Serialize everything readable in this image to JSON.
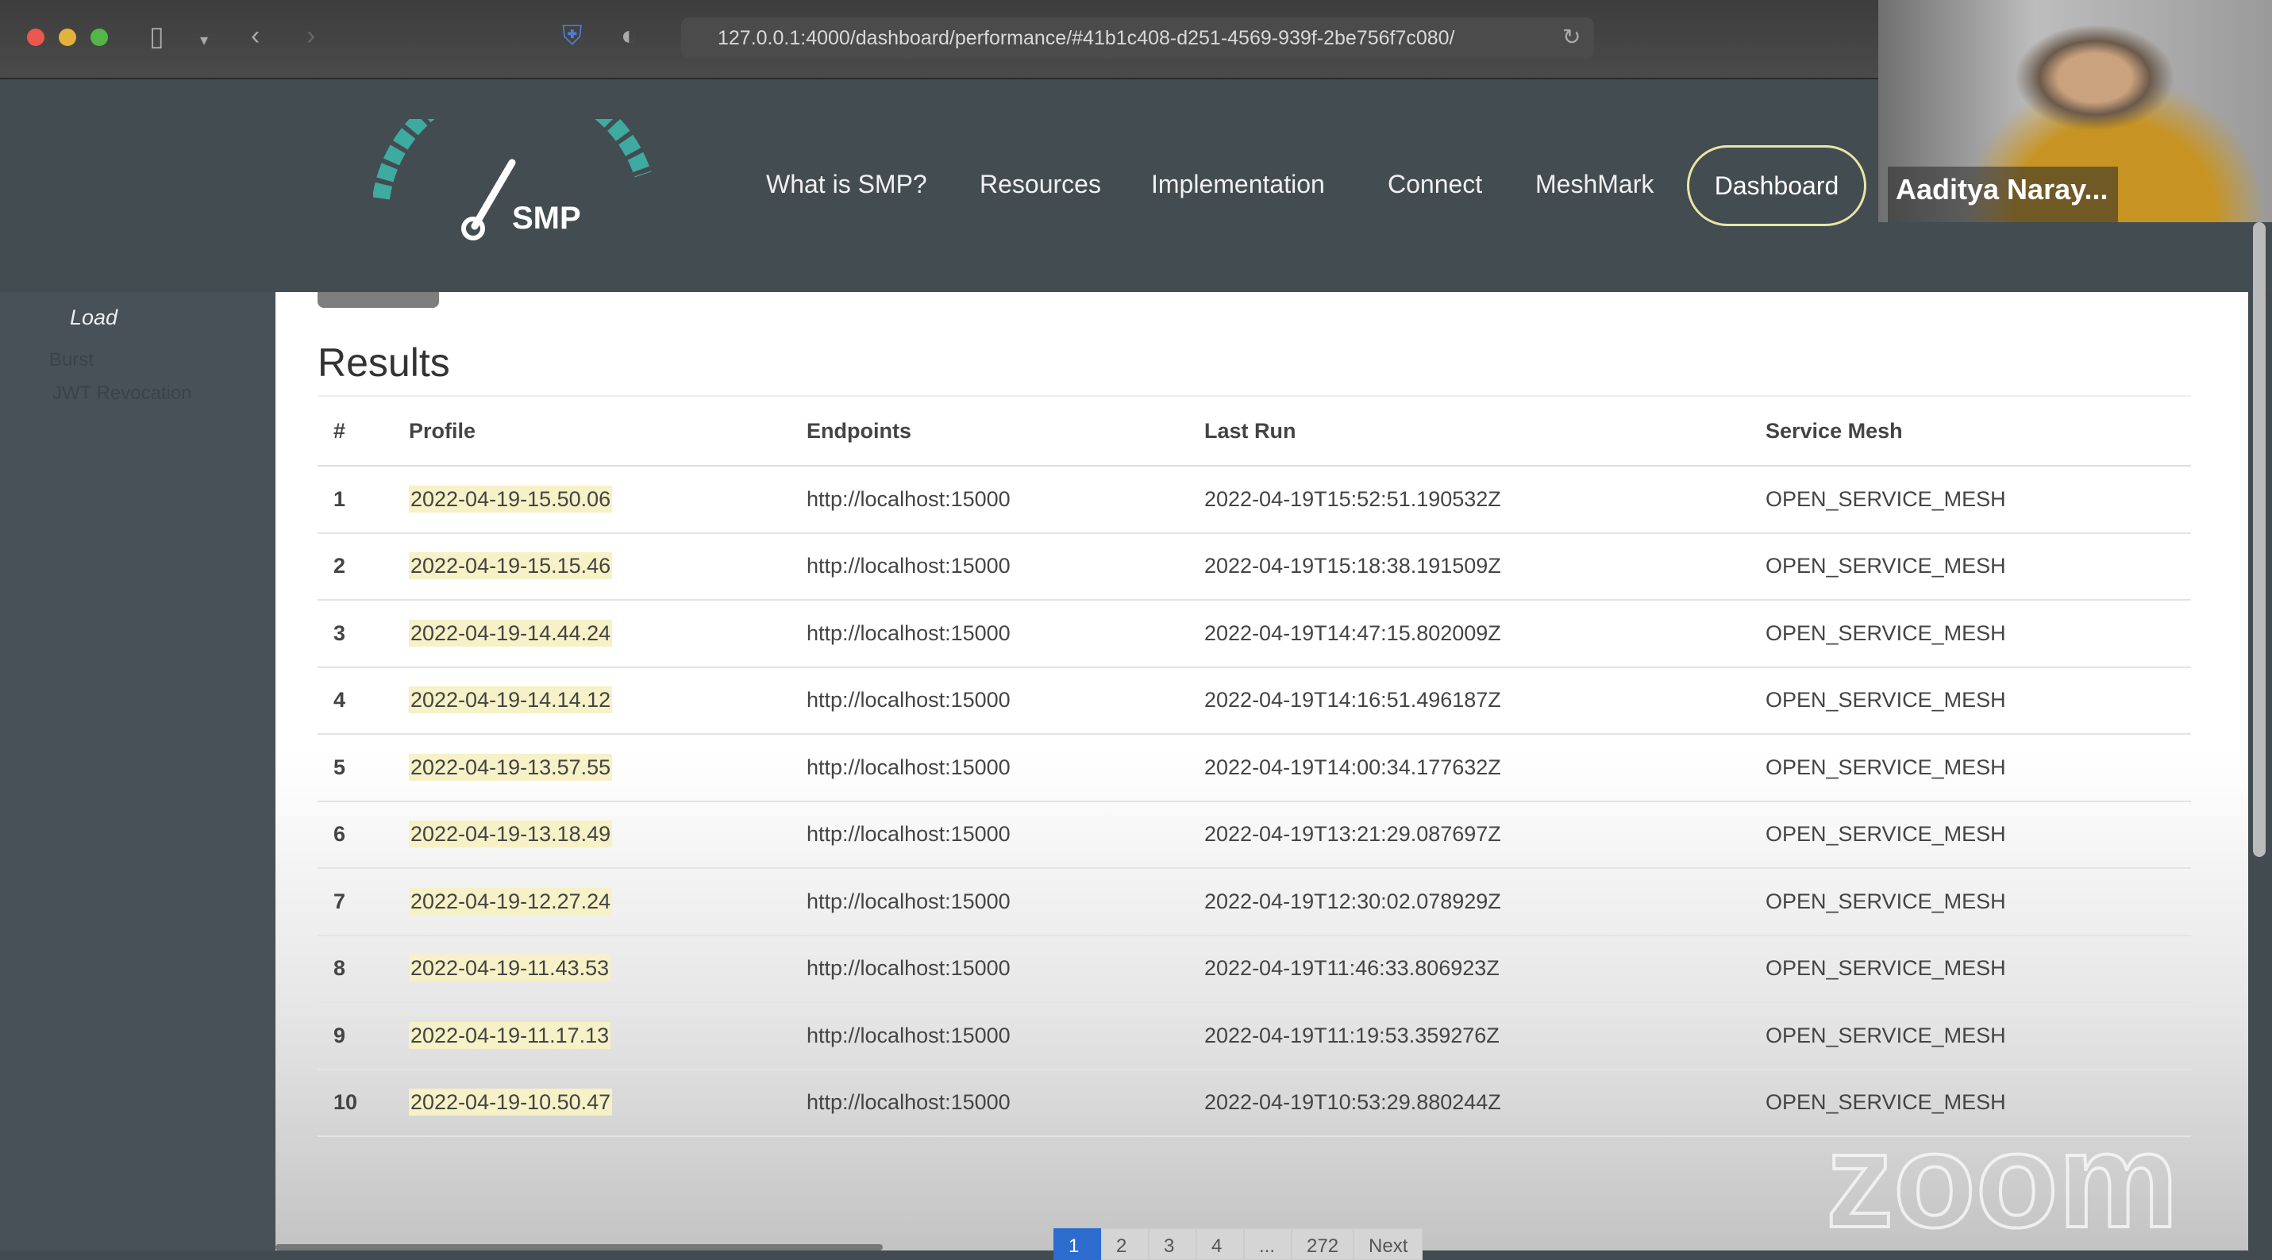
{
  "browser": {
    "url": "127.0.0.1:4000/dashboard/performance/#41b1c408-d251-4569-939f-2be756f7c080/"
  },
  "header": {
    "logo_text": "SMP",
    "nav": [
      "What is SMP?",
      "Resources",
      "Implementation",
      "Connect",
      "MeshMark"
    ],
    "dashboard_label": "Dashboard",
    "accent": "#3fb5a8"
  },
  "video": {
    "participant": "Aaditya Naray..."
  },
  "sidebar": {
    "items": [
      "Load",
      "Burst",
      "JWT Revocation"
    ]
  },
  "main": {
    "title": "Results",
    "columns": [
      "#",
      "Profile",
      "Endpoints",
      "Last Run",
      "Service Mesh"
    ],
    "rows": [
      [
        "1",
        "2022-04-19-15.50.06",
        "http://localhost:15000",
        "2022-04-19T15:52:51.190532Z",
        "OPEN_SERVICE_MESH"
      ],
      [
        "2",
        "2022-04-19-15.15.46",
        "http://localhost:15000",
        "2022-04-19T15:18:38.191509Z",
        "OPEN_SERVICE_MESH"
      ],
      [
        "3",
        "2022-04-19-14.44.24",
        "http://localhost:15000",
        "2022-04-19T14:47:15.802009Z",
        "OPEN_SERVICE_MESH"
      ],
      [
        "4",
        "2022-04-19-14.14.12",
        "http://localhost:15000",
        "2022-04-19T14:16:51.496187Z",
        "OPEN_SERVICE_MESH"
      ],
      [
        "5",
        "2022-04-19-13.57.55",
        "http://localhost:15000",
        "2022-04-19T14:00:34.177632Z",
        "OPEN_SERVICE_MESH"
      ],
      [
        "6",
        "2022-04-19-13.18.49",
        "http://localhost:15000",
        "2022-04-19T13:21:29.087697Z",
        "OPEN_SERVICE_MESH"
      ],
      [
        "7",
        "2022-04-19-12.27.24",
        "http://localhost:15000",
        "2022-04-19T12:30:02.078929Z",
        "OPEN_SERVICE_MESH"
      ],
      [
        "8",
        "2022-04-19-11.43.53",
        "http://localhost:15000",
        "2022-04-19T11:46:33.806923Z",
        "OPEN_SERVICE_MESH"
      ],
      [
        "9",
        "2022-04-19-11.17.13",
        "http://localhost:15000",
        "2022-04-19T11:19:53.359276Z",
        "OPEN_SERVICE_MESH"
      ],
      [
        "10",
        "2022-04-19-10.50.47",
        "http://localhost:15000",
        "2022-04-19T10:53:29.880244Z",
        "OPEN_SERVICE_MESH"
      ]
    ],
    "pagination": [
      "1",
      "2",
      "3",
      "4",
      "...",
      "272",
      "Next"
    ]
  },
  "watermark": "zoom"
}
